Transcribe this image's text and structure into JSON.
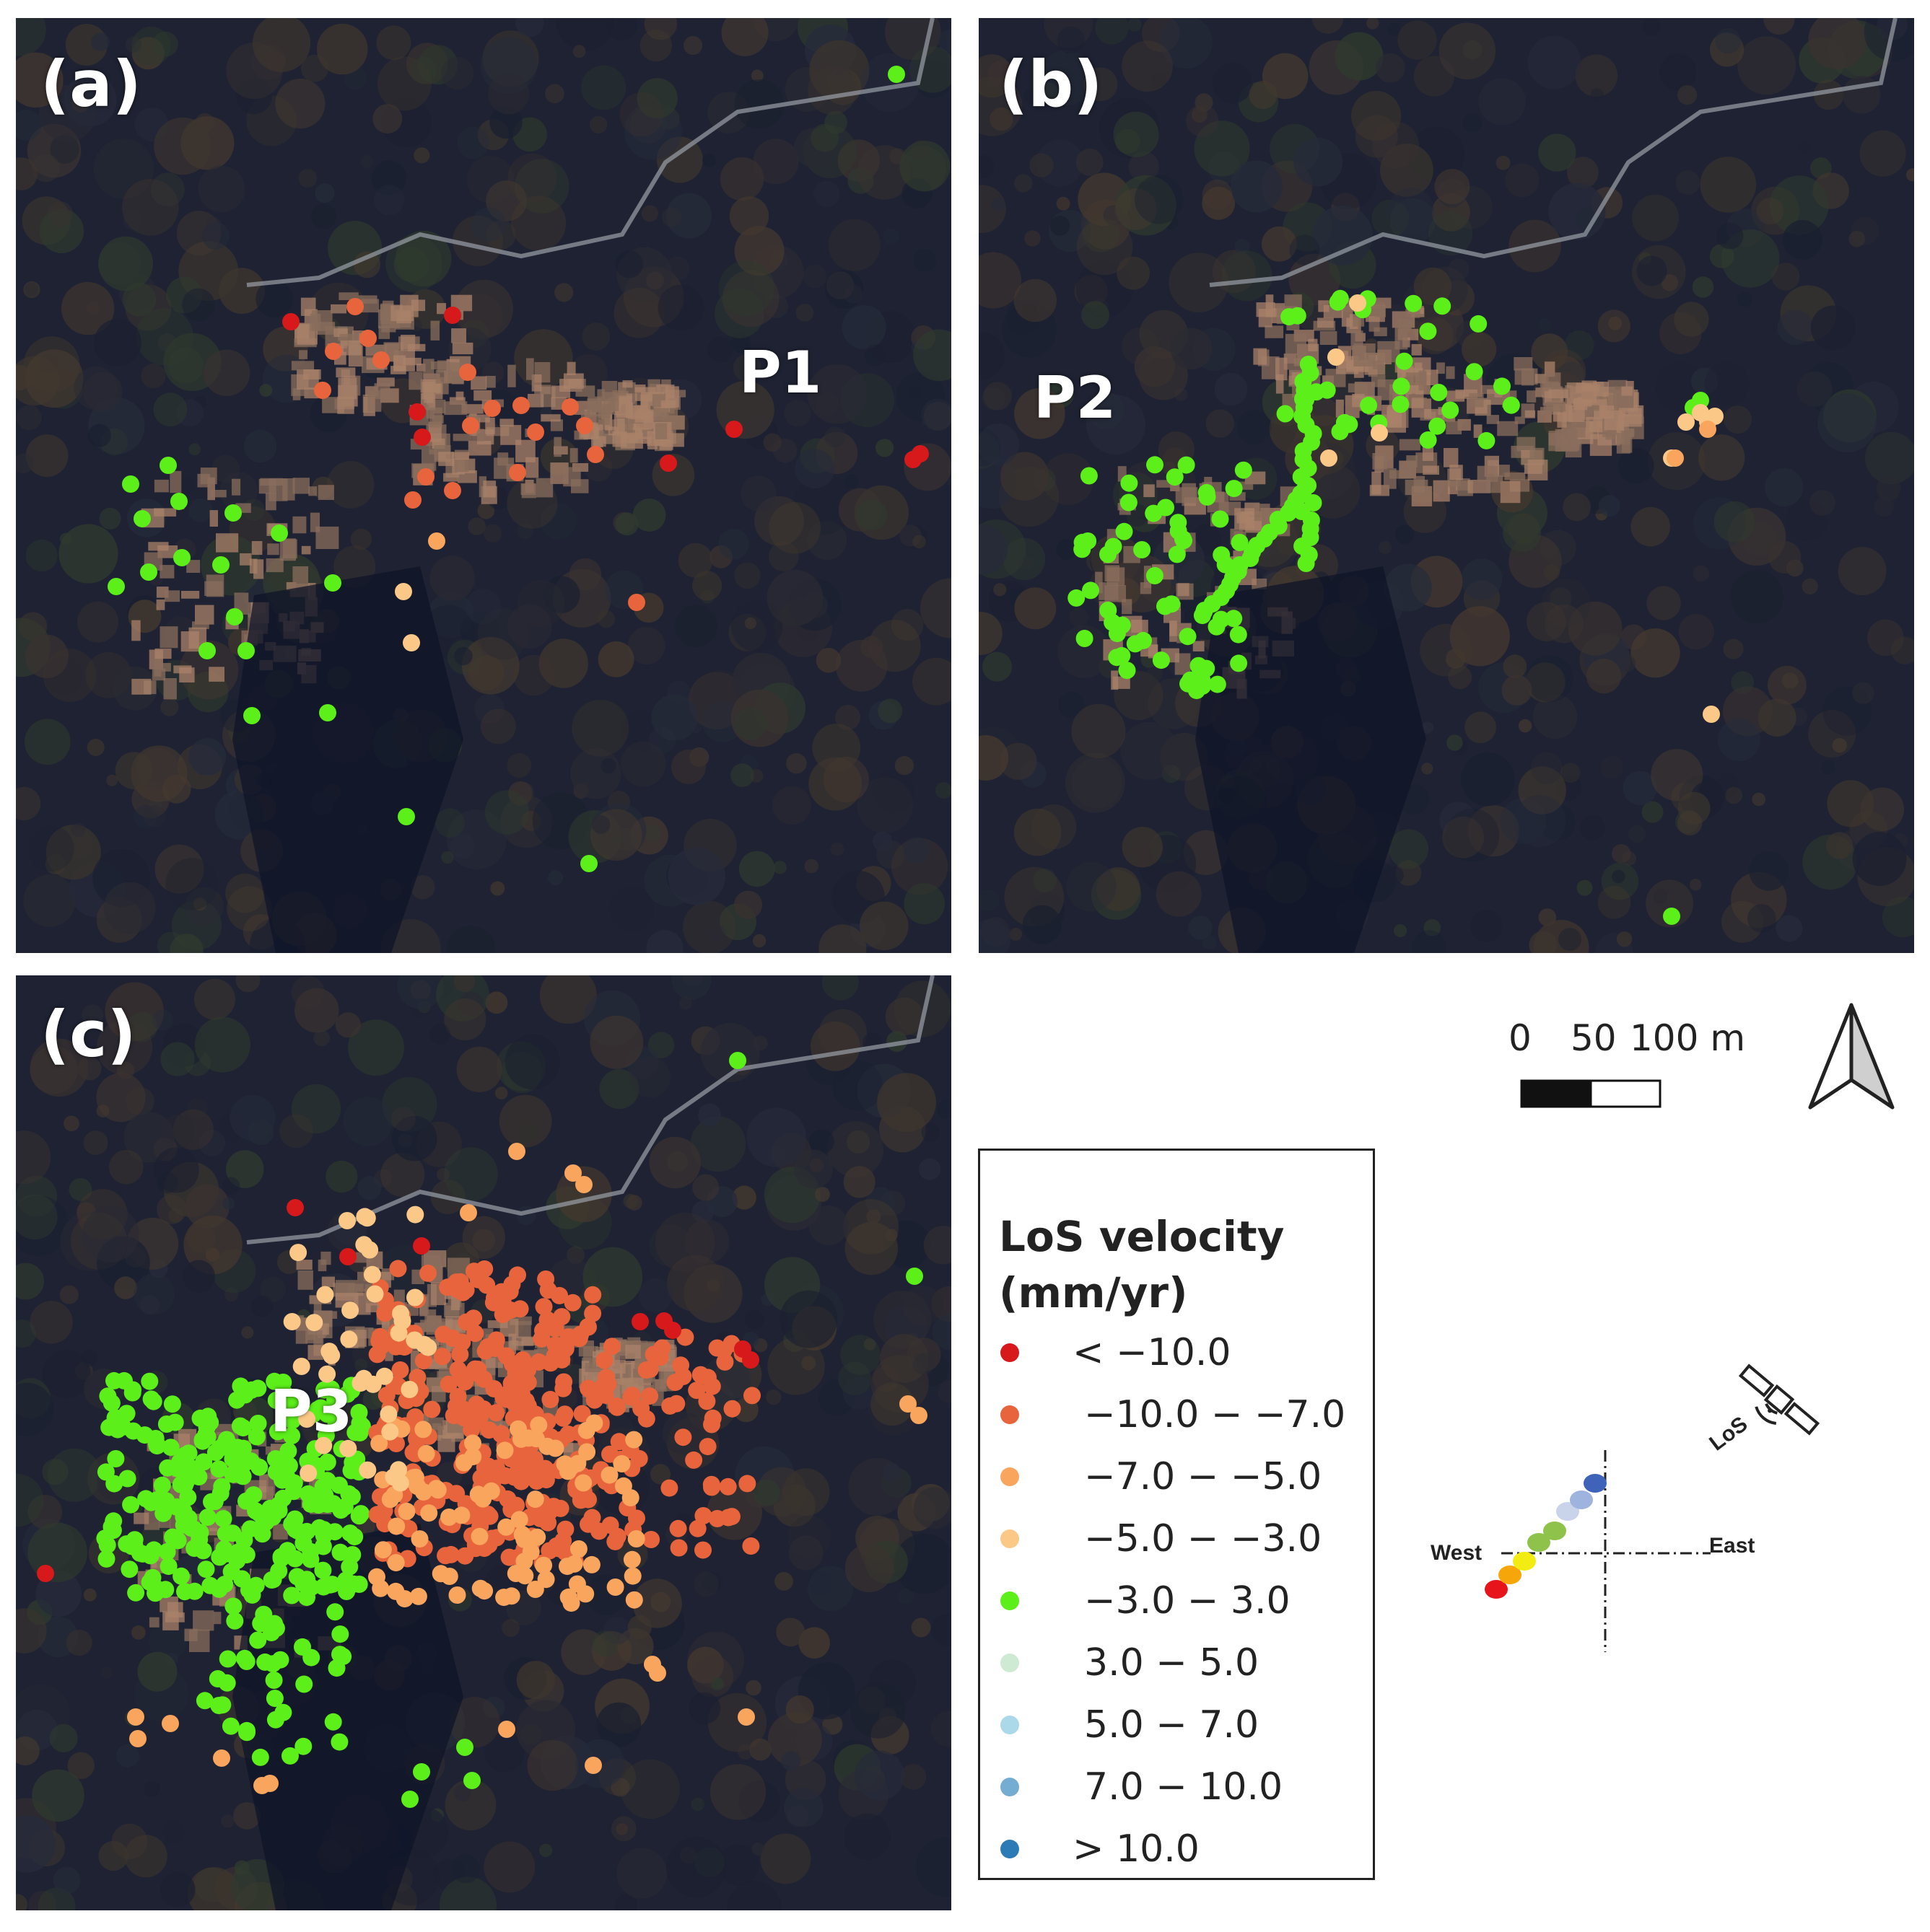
{
  "panels": [
    {
      "label": "(a)",
      "point_label": "P1",
      "dot_set": "a"
    },
    {
      "label": "(b)",
      "point_label": "P2",
      "dot_set": "b"
    },
    {
      "label": "(c)",
      "point_label": "P3",
      "dot_set": "c"
    }
  ],
  "legend": {
    "title": "LoS velocity\n(mm/yr)",
    "classes": [
      {
        "label": "< −10.0",
        "color": "#d7191c"
      },
      {
        "label": "−10.0 − −7.0",
        "color": "#e8643c"
      },
      {
        "label": "−7.0 − −5.0",
        "color": "#f9a55e"
      },
      {
        "label": "−5.0 − −3.0",
        "color": "#fcc888"
      },
      {
        "label": "−3.0 − 3.0",
        "color": "#5cef1a"
      },
      {
        "label": "3.0 − 5.0",
        "color": "#cfead2"
      },
      {
        "label": "5.0 − 7.0",
        "color": "#abd9e9"
      },
      {
        "label": "7.0 − 10.0",
        "color": "#74add1"
      },
      {
        "label": "> 10.0",
        "color": "#2c7bb6"
      }
    ]
  },
  "scale_bar": {
    "ticks": [
      "0",
      "50",
      "100 m"
    ]
  },
  "los_diagram": {
    "west_label": "West",
    "east_label": "East",
    "los_label": "LoS",
    "dot_colors": [
      "#e8141c",
      "#f7a60a",
      "#f2ec12",
      "#8fc24a",
      "#8fc24a",
      "#c9d3ea",
      "#9fb3df",
      "#3f63b8"
    ]
  }
}
